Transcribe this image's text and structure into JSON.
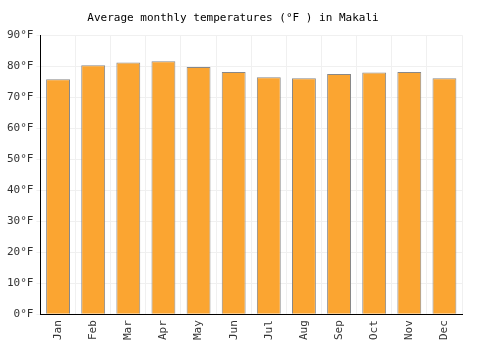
{
  "chart_data": {
    "type": "bar",
    "title": "Average monthly temperatures (°F ) in Makali",
    "categories": [
      "Jan",
      "Feb",
      "Mar",
      "Apr",
      "May",
      "Jun",
      "Jul",
      "Aug",
      "Sep",
      "Oct",
      "Nov",
      "Dec"
    ],
    "values": [
      75.8,
      80.3,
      81.2,
      81.6,
      79.7,
      78.1,
      76.4,
      76.1,
      77.5,
      78.0,
      78.1,
      76.1
    ],
    "color": "#fba531",
    "ylim": [
      0,
      90
    ],
    "yticks": [
      {
        "value": 0,
        "label": "0°F"
      },
      {
        "value": 10,
        "label": "10°F"
      },
      {
        "value": 20,
        "label": "20°F"
      },
      {
        "value": 30,
        "label": "30°F"
      },
      {
        "value": 40,
        "label": "40°F"
      },
      {
        "value": 50,
        "label": "50°F"
      },
      {
        "value": 60,
        "label": "60°F"
      },
      {
        "value": 70,
        "label": "70°F"
      },
      {
        "value": 80,
        "label": "80°F"
      },
      {
        "value": 90,
        "label": "90°F"
      }
    ],
    "grid": true
  }
}
